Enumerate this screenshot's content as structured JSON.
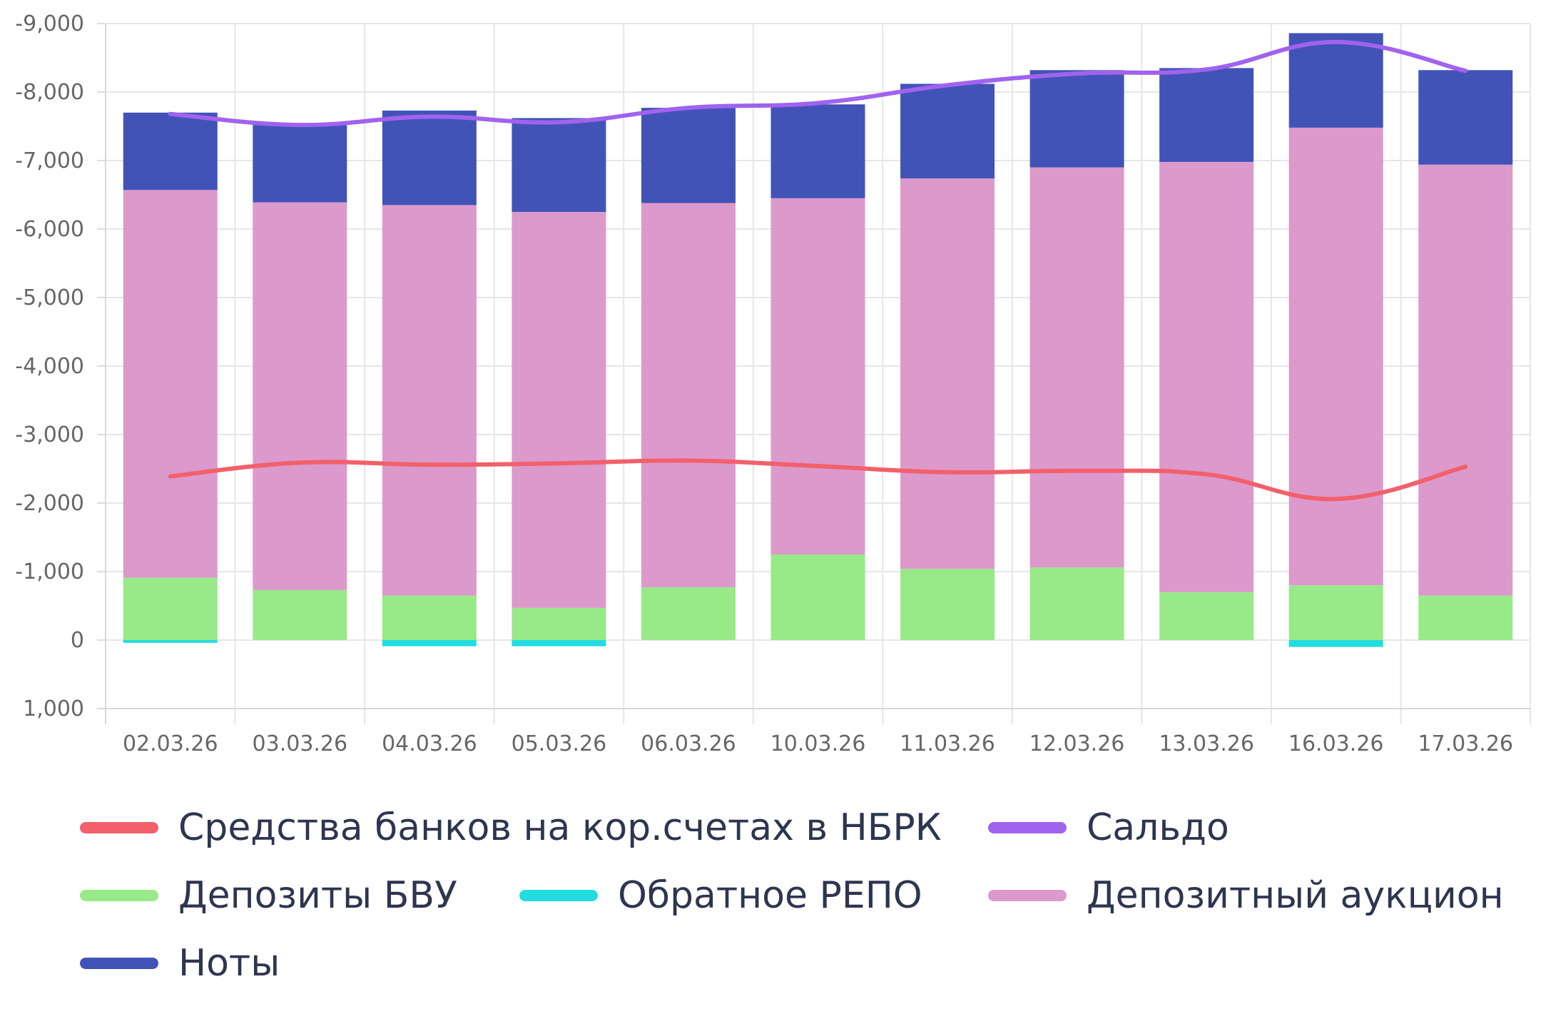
{
  "chart_data": {
    "type": "bar",
    "stacked": true,
    "categories": [
      "02.03.26",
      "03.03.26",
      "04.03.26",
      "05.03.26",
      "06.03.26",
      "10.03.26",
      "11.03.26",
      "12.03.26",
      "13.03.26",
      "16.03.26",
      "17.03.26"
    ],
    "ylim": [
      1000,
      -9000
    ],
    "y_axis_reversed": true,
    "y_ticks": [
      -9000,
      -8000,
      -7000,
      -6000,
      -5000,
      -4000,
      -3000,
      -2000,
      -1000,
      0,
      1000
    ],
    "y_tick_labels": [
      "-9,000",
      "-8,000",
      "-7,000",
      "-6,000",
      "-5,000",
      "-4,000",
      "-3,000",
      "-2,000",
      "-1,000",
      "0",
      "1,000"
    ],
    "grid": true,
    "legend_position": "bottom",
    "bar_series": [
      {
        "name": "Обратное РЕПО",
        "color": "#22dde0",
        "values": [
          40,
          0,
          90,
          90,
          0,
          0,
          0,
          0,
          0,
          100,
          0
        ]
      },
      {
        "name": "Депозиты БВУ",
        "color": "#98e987",
        "values": [
          -910,
          -730,
          -650,
          -470,
          -770,
          -1250,
          -1040,
          -1060,
          -700,
          -800,
          -650
        ]
      },
      {
        "name": "Депозитный аукцион",
        "color": "#dc99cb",
        "values": [
          -5660,
          -5660,
          -5700,
          -5780,
          -5610,
          -5200,
          -5700,
          -5840,
          -6280,
          -6680,
          -6290
        ]
      },
      {
        "name": "Ноты",
        "color": "#4253b8",
        "values": [
          -1130,
          -1130,
          -1380,
          -1370,
          -1390,
          -1370,
          -1380,
          -1420,
          -1370,
          -1380,
          -1380
        ]
      }
    ],
    "line_series": [
      {
        "name": "Средства банков на кор.счетах в НБРК",
        "color": "#f2606b",
        "values": [
          -2390,
          -2590,
          -2560,
          -2580,
          -2620,
          -2540,
          -2450,
          -2470,
          -2420,
          -2060,
          -2530
        ]
      },
      {
        "name": "Сальдо",
        "color": "#a063ee",
        "values": [
          -7680,
          -7520,
          -7640,
          -7560,
          -7770,
          -7840,
          -8100,
          -8270,
          -8330,
          -8730,
          -8310
        ]
      }
    ]
  },
  "legend": {
    "items": [
      {
        "label": "Средства банков на кор.счетах в НБРК",
        "color": "#f2606b"
      },
      {
        "label": "Сальдо",
        "color": "#a063ee"
      },
      {
        "label": "Депозиты БВУ",
        "color": "#98e987"
      },
      {
        "label": "Обратное РЕПО",
        "color": "#22dde0"
      },
      {
        "label": "Депозитный аукцион",
        "color": "#dc99cb"
      },
      {
        "label": "Ноты",
        "color": "#4253b8"
      }
    ]
  }
}
